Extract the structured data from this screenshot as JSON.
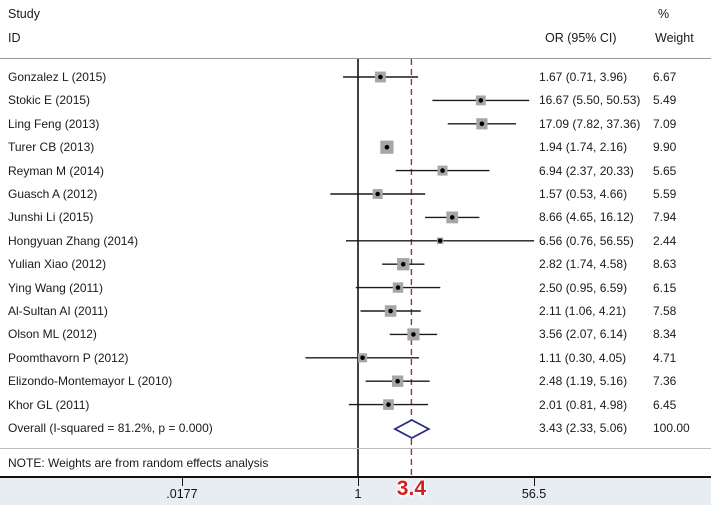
{
  "header": {
    "study_line1": "Study",
    "study_line2": "ID",
    "percent": "%",
    "or_col": "OR (95% CI)",
    "weight_col": "Weight"
  },
  "note": "NOTE: Weights are from random effects analysis",
  "ref_line": {
    "value": 3.4,
    "label": "3.4",
    "color": "#d42020",
    "line_color": "#8e3a3a"
  },
  "colors": {
    "square": "#a6a6a6",
    "marker": "#000000",
    "ci_line": "#1a1a1a",
    "null_line": "#000000",
    "diamond_outline": "#2a2f80",
    "axis_strip": "#e7edf3"
  },
  "chart_data": {
    "type": "forest",
    "scale": "log10",
    "xlabel": "",
    "null_line_value": 1,
    "axis_ticks": [
      {
        "value": 0.0177,
        "label": ".0177"
      },
      {
        "value": 1,
        "label": "1"
      },
      {
        "value": 56.5,
        "label": "56.5"
      }
    ],
    "studies": [
      {
        "name": "Gonzalez L  (2015)",
        "or": 1.67,
        "lo": 0.71,
        "hi": 3.96,
        "or_label": "1.67 (0.71, 3.96)",
        "weight": 6.67,
        "weight_label": "6.67"
      },
      {
        "name": "Stokic E (2015)",
        "or": 16.67,
        "lo": 5.5,
        "hi": 50.53,
        "or_label": "16.67 (5.50, 50.53)",
        "weight": 5.49,
        "weight_label": "5.49"
      },
      {
        "name": "Ling Feng (2013)",
        "or": 17.09,
        "lo": 7.82,
        "hi": 37.36,
        "or_label": "17.09 (7.82, 37.36)",
        "weight": 7.09,
        "weight_label": "7.09"
      },
      {
        "name": "Turer CB  (2013)",
        "or": 1.94,
        "lo": 1.74,
        "hi": 2.16,
        "or_label": "1.94 (1.74, 2.16)",
        "weight": 9.9,
        "weight_label": "9.90"
      },
      {
        "name": "Reyman M  (2014)",
        "or": 6.94,
        "lo": 2.37,
        "hi": 20.33,
        "or_label": "6.94 (2.37, 20.33)",
        "weight": 5.65,
        "weight_label": "5.65"
      },
      {
        "name": "Guasch A  (2012)",
        "or": 1.57,
        "lo": 0.53,
        "hi": 4.66,
        "or_label": "1.57 (0.53, 4.66)",
        "weight": 5.59,
        "weight_label": "5.59"
      },
      {
        "name": "Junshi Li (2015)",
        "or": 8.66,
        "lo": 4.65,
        "hi": 16.12,
        "or_label": "8.66 (4.65, 16.12)",
        "weight": 7.94,
        "weight_label": "7.94"
      },
      {
        "name": "Hongyuan Zhang (2014)",
        "or": 6.56,
        "lo": 0.76,
        "hi": 56.55,
        "or_label": "6.56 (0.76, 56.55)",
        "weight": 2.44,
        "weight_label": "2.44"
      },
      {
        "name": "Yulian Xiao  (2012)",
        "or": 2.82,
        "lo": 1.74,
        "hi": 4.58,
        "or_label": "2.82 (1.74, 4.58)",
        "weight": 8.63,
        "weight_label": "8.63"
      },
      {
        "name": "Ying Wang (2011)",
        "or": 2.5,
        "lo": 0.95,
        "hi": 6.59,
        "or_label": "2.50 (0.95, 6.59)",
        "weight": 6.15,
        "weight_label": "6.15"
      },
      {
        "name": "Al-Sultan AI  (2011)",
        "or": 2.11,
        "lo": 1.06,
        "hi": 4.21,
        "or_label": "2.11 (1.06, 4.21)",
        "weight": 7.58,
        "weight_label": "7.58"
      },
      {
        "name": "Olson ML  (2012)",
        "or": 3.56,
        "lo": 2.07,
        "hi": 6.14,
        "or_label": "3.56 (2.07, 6.14)",
        "weight": 8.34,
        "weight_label": "8.34"
      },
      {
        "name": "Poomthavorn P  (2012)",
        "or": 1.11,
        "lo": 0.3,
        "hi": 4.05,
        "or_label": "1.11 (0.30, 4.05)",
        "weight": 4.71,
        "weight_label": "4.71"
      },
      {
        "name": "Elizondo-Montemayor L  (2010)",
        "or": 2.48,
        "lo": 1.19,
        "hi": 5.16,
        "or_label": "2.48 (1.19, 5.16)",
        "weight": 7.36,
        "weight_label": "7.36"
      },
      {
        "name": "Khor GL  (2011)",
        "or": 2.01,
        "lo": 0.81,
        "hi": 4.98,
        "or_label": "2.01 (0.81, 4.98)",
        "weight": 6.45,
        "weight_label": "6.45"
      }
    ],
    "overall": {
      "name": "Overall  (I-squared = 81.2%, p = 0.000)",
      "or": 3.43,
      "lo": 2.33,
      "hi": 5.06,
      "or_label": "3.43 (2.33, 5.06)",
      "weight_label": "100.00"
    }
  }
}
